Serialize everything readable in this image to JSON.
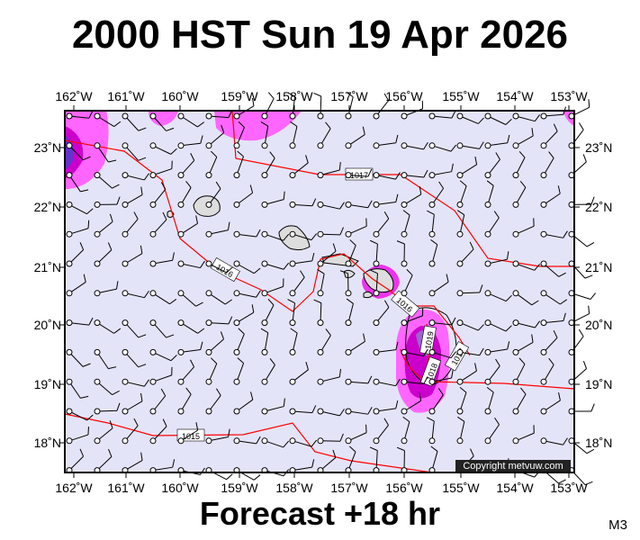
{
  "title": "2000 HST Sun 19 Apr 2026",
  "forecast": "Forecast +18 hr",
  "code": "M3",
  "copyright": "Copyright metvuw.com",
  "longitudes": [
    "162˚W",
    "161˚W",
    "160˚W",
    "159˚W",
    "158˚W",
    "157˚W",
    "156˚W",
    "155˚W",
    "154˚W",
    "153˚W"
  ],
  "latitudes": [
    "23˚N",
    "22˚N",
    "21˚N",
    "20˚N",
    "19˚N",
    "18˚N"
  ],
  "isobars": [
    "1017",
    "1016",
    "1016",
    "1019",
    "1018",
    "1017",
    "1015"
  ],
  "colors": {
    "background": "#e4e4f9",
    "isobar": "#ff0000",
    "rain_light": "#ff66ff",
    "rain_heavy": "#cc00cc",
    "rain_core": "#6633cc"
  }
}
